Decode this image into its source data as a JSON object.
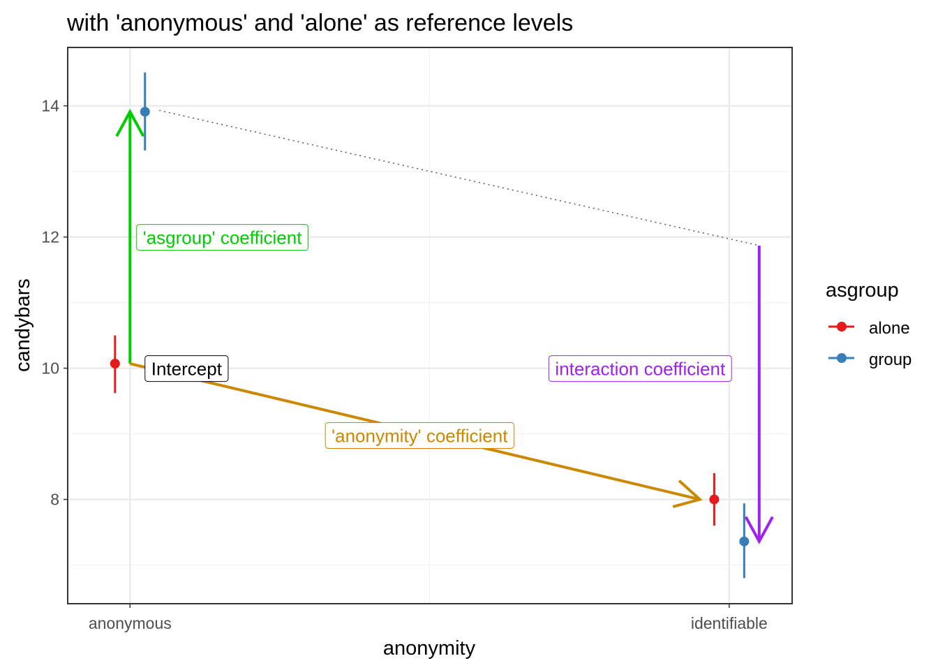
{
  "chart_data": {
    "type": "scatter",
    "title": "with 'anonymous' and 'alone' as reference levels",
    "xlabel": "anonymity",
    "ylabel": "candybars",
    "categories": [
      "anonymous",
      "identifiable"
    ],
    "ylim": [
      6.41,
      14.89
    ],
    "xlim": [
      0.896,
      2.105
    ],
    "yticks": [
      8,
      10,
      12,
      14
    ],
    "grid": true,
    "legend": {
      "title": "asgroup",
      "position": "right",
      "entries": [
        "alone",
        "group"
      ]
    },
    "series": [
      {
        "name": "alone",
        "color": "#e41a1c",
        "dodge": -0.025,
        "points": [
          {
            "category": "anonymous",
            "y": 10.07,
            "lo": 9.62,
            "hi": 10.5
          },
          {
            "category": "identifiable",
            "y": 8.0,
            "lo": 7.6,
            "hi": 8.4
          }
        ]
      },
      {
        "name": "group",
        "color": "#377eb8",
        "dodge": 0.025,
        "points": [
          {
            "category": "anonymous",
            "y": 13.91,
            "lo": 13.32,
            "hi": 14.51
          },
          {
            "category": "identifiable",
            "y": 7.36,
            "lo": 6.8,
            "hi": 7.94
          }
        ]
      }
    ],
    "annotations": [
      {
        "kind": "arrow",
        "name": "asgroup-arrow",
        "color": "#00cc00",
        "from": [
          1,
          10.07
        ],
        "to": [
          1,
          13.91
        ]
      },
      {
        "kind": "arrow",
        "name": "anonymity-arrow",
        "color": "#cc8800",
        "from": [
          1,
          10.07
        ],
        "to": [
          1.951,
          8.0
        ]
      },
      {
        "kind": "arrow",
        "name": "interaction-arrow",
        "color": "#a020f0",
        "from": [
          2.05,
          11.87
        ],
        "to": [
          2.05,
          7.36
        ]
      },
      {
        "kind": "dotted",
        "name": "group-reference-line",
        "color": "#555555",
        "from": [
          1.049,
          13.93
        ],
        "to": [
          2.05,
          11.87
        ]
      },
      {
        "kind": "label",
        "name": "asgroup-label",
        "text": "'asgroup' coefficient",
        "color": "#00cc00",
        "at": [
          1.011,
          12.0
        ]
      },
      {
        "kind": "label",
        "name": "intercept-label",
        "text": "Intercept",
        "color": "#000000",
        "at": [
          1.025,
          10.0
        ]
      },
      {
        "kind": "label",
        "name": "anonymity-label",
        "text": "'anonymity' coefficient",
        "color": "#cc8800",
        "at": [
          1.326,
          8.98
        ]
      },
      {
        "kind": "label",
        "name": "interaction-label",
        "text": "interaction coefficient",
        "color": "#a020f0",
        "at": [
          1.699,
          10.0
        ]
      }
    ]
  }
}
